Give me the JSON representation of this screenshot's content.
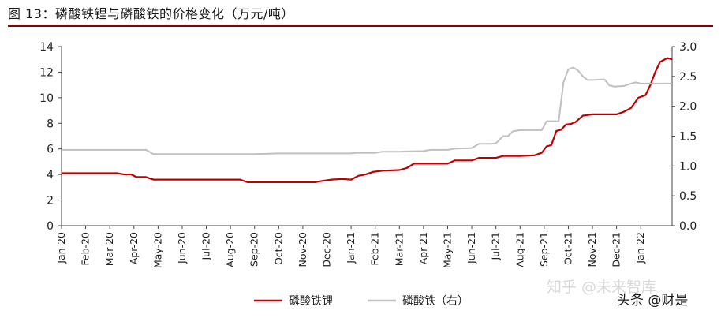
{
  "header": {
    "title": "图 13：磷酸铁锂与磷酸铁的价格变化（万元/吨）"
  },
  "chart_data": {
    "type": "line",
    "title": "图 13：磷酸铁锂与磷酸铁的价格变化（万元/吨）",
    "categories": [
      "Jan-20",
      "Feb-20",
      "Mar-20",
      "Apr-20",
      "May-20",
      "Jun-20",
      "Jul-20",
      "Aug-20",
      "Sep-20",
      "Oct-20",
      "Nov-20",
      "Dec-20",
      "Jan-21",
      "Feb-21",
      "Mar-21",
      "Apr-21",
      "May-21",
      "Jun-21",
      "Jul-21",
      "Aug-21",
      "Sep-21",
      "Oct-21",
      "Nov-21",
      "Dec-21",
      "Jan-22"
    ],
    "y_left": {
      "range": [
        0,
        14
      ],
      "ticks": [
        "0",
        "2",
        "4",
        "6",
        "8",
        "10",
        "12",
        "14"
      ]
    },
    "y_right": {
      "range": [
        0,
        3.0
      ],
      "ticks": [
        "0.0",
        "0.5",
        "1.0",
        "1.5",
        "2.0",
        "2.5",
        "3.0"
      ]
    },
    "grid": false,
    "legend_position": "bottom",
    "series": [
      {
        "name": "磷酸铁锂",
        "axis": "left",
        "color": "#c00000",
        "points": [
          [
            0.0,
            4.1
          ],
          [
            1.0,
            4.1
          ],
          [
            2.0,
            4.1
          ],
          [
            2.3,
            4.1
          ],
          [
            2.6,
            4.0
          ],
          [
            2.9,
            4.0
          ],
          [
            3.1,
            3.8
          ],
          [
            3.5,
            3.8
          ],
          [
            3.8,
            3.6
          ],
          [
            4.0,
            3.6
          ],
          [
            5.0,
            3.6
          ],
          [
            6.0,
            3.6
          ],
          [
            7.0,
            3.6
          ],
          [
            7.4,
            3.6
          ],
          [
            7.7,
            3.4
          ],
          [
            8.0,
            3.4
          ],
          [
            9.0,
            3.4
          ],
          [
            10.0,
            3.4
          ],
          [
            10.5,
            3.4
          ],
          [
            10.8,
            3.5
          ],
          [
            11.2,
            3.6
          ],
          [
            11.6,
            3.65
          ],
          [
            12.0,
            3.6
          ],
          [
            12.3,
            3.9
          ],
          [
            12.6,
            4.0
          ],
          [
            12.9,
            4.2
          ],
          [
            13.3,
            4.3
          ],
          [
            14.0,
            4.35
          ],
          [
            14.3,
            4.5
          ],
          [
            14.6,
            4.85
          ],
          [
            15.0,
            4.85
          ],
          [
            15.5,
            4.85
          ],
          [
            16.0,
            4.85
          ],
          [
            16.3,
            5.1
          ],
          [
            17.0,
            5.1
          ],
          [
            17.3,
            5.3
          ],
          [
            18.0,
            5.3
          ],
          [
            18.3,
            5.45
          ],
          [
            19.0,
            5.45
          ],
          [
            19.6,
            5.5
          ],
          [
            19.9,
            5.7
          ],
          [
            20.1,
            6.2
          ],
          [
            20.3,
            6.3
          ],
          [
            20.5,
            7.4
          ],
          [
            20.7,
            7.5
          ],
          [
            20.9,
            7.9
          ],
          [
            21.1,
            7.95
          ],
          [
            21.3,
            8.1
          ],
          [
            21.6,
            8.6
          ],
          [
            22.0,
            8.7
          ],
          [
            22.5,
            8.7
          ],
          [
            23.0,
            8.7
          ],
          [
            23.3,
            8.9
          ],
          [
            23.6,
            9.2
          ],
          [
            23.9,
            10.0
          ],
          [
            24.2,
            10.2
          ],
          [
            24.4,
            11.0
          ],
          [
            24.6,
            12.0
          ],
          [
            24.8,
            12.8
          ],
          [
            25.1,
            13.1
          ],
          [
            25.3,
            13.0
          ]
        ]
      },
      {
        "name": "磷酸铁（右）",
        "axis": "right",
        "color": "#c0c0c0",
        "points": [
          [
            0.0,
            1.27
          ],
          [
            1.0,
            1.27
          ],
          [
            2.0,
            1.27
          ],
          [
            3.0,
            1.27
          ],
          [
            3.5,
            1.27
          ],
          [
            3.8,
            1.2
          ],
          [
            4.0,
            1.2
          ],
          [
            5.0,
            1.2
          ],
          [
            6.0,
            1.2
          ],
          [
            7.0,
            1.2
          ],
          [
            8.0,
            1.2
          ],
          [
            9.0,
            1.21
          ],
          [
            10.0,
            1.21
          ],
          [
            11.0,
            1.21
          ],
          [
            12.0,
            1.21
          ],
          [
            12.2,
            1.22
          ],
          [
            12.5,
            1.22
          ],
          [
            13.0,
            1.22
          ],
          [
            13.3,
            1.24
          ],
          [
            14.0,
            1.24
          ],
          [
            15.0,
            1.25
          ],
          [
            15.3,
            1.27
          ],
          [
            16.0,
            1.27
          ],
          [
            16.3,
            1.29
          ],
          [
            17.0,
            1.3
          ],
          [
            17.3,
            1.37
          ],
          [
            17.8,
            1.37
          ],
          [
            18.0,
            1.38
          ],
          [
            18.3,
            1.5
          ],
          [
            18.5,
            1.5
          ],
          [
            18.7,
            1.58
          ],
          [
            19.0,
            1.6
          ],
          [
            19.6,
            1.6
          ],
          [
            19.9,
            1.6
          ],
          [
            20.1,
            1.75
          ],
          [
            20.3,
            1.75
          ],
          [
            20.6,
            1.75
          ],
          [
            20.8,
            2.4
          ],
          [
            21.0,
            2.62
          ],
          [
            21.2,
            2.65
          ],
          [
            21.4,
            2.6
          ],
          [
            21.6,
            2.5
          ],
          [
            21.8,
            2.44
          ],
          [
            22.0,
            2.44
          ],
          [
            22.5,
            2.45
          ],
          [
            22.7,
            2.35
          ],
          [
            22.9,
            2.33
          ],
          [
            23.3,
            2.34
          ],
          [
            23.6,
            2.38
          ],
          [
            23.8,
            2.4
          ],
          [
            24.0,
            2.38
          ],
          [
            24.5,
            2.38
          ],
          [
            24.8,
            2.38
          ],
          [
            25.3,
            2.38
          ]
        ]
      }
    ]
  },
  "watermark": {
    "line1": "知乎 @未来智库",
    "line2": "头条 @财是"
  }
}
